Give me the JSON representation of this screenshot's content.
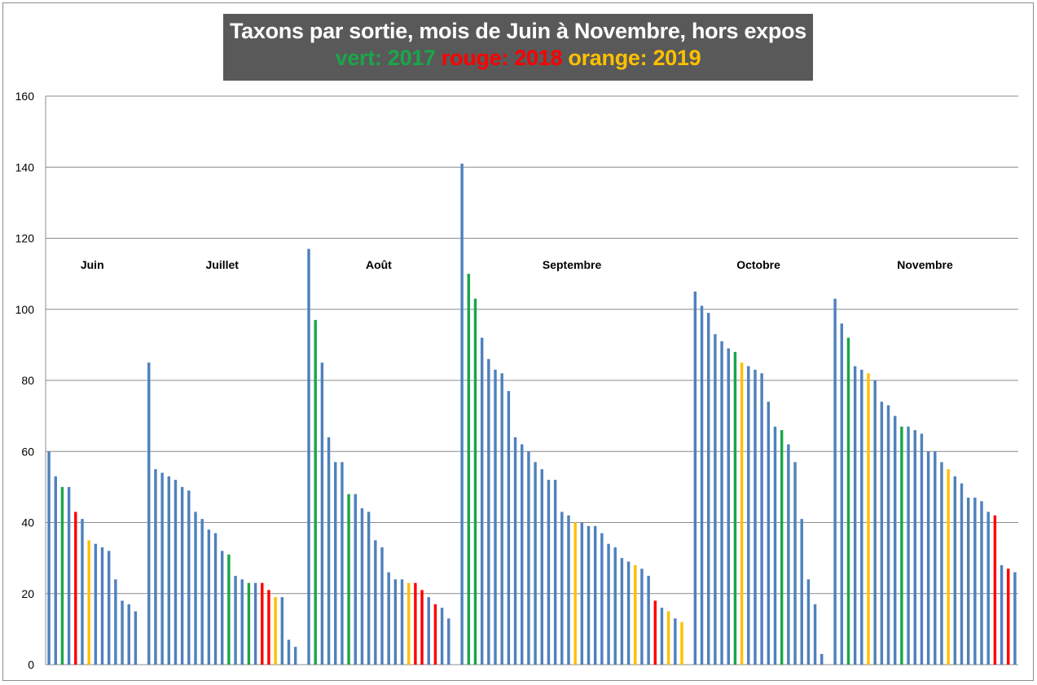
{
  "chart_data": {
    "type": "bar",
    "title_line1": "Taxons par sortie, mois de Juin à Novembre, hors expos",
    "title_line2": [
      {
        "text": "vert: 2017",
        "color": "#1aa64a"
      },
      {
        "text": "rouge: 2018",
        "color": "#ff0000"
      },
      {
        "text": "orange: 2019",
        "color": "#ffc000"
      }
    ],
    "colors": {
      "blue": "#4f81bd",
      "green": "#1aa64a",
      "red": "#ff0000",
      "orange": "#ffc000"
    },
    "ylim": [
      0,
      160
    ],
    "yticks": [
      0,
      20,
      40,
      60,
      80,
      100,
      120,
      140,
      160
    ],
    "grid": true,
    "months": [
      {
        "name": "Juin",
        "values": [
          60,
          53,
          50,
          50,
          43,
          41,
          35,
          34,
          33,
          32,
          24,
          18,
          17,
          15
        ],
        "colors": [
          "blue",
          "blue",
          "green",
          "blue",
          "red",
          "blue",
          "orange",
          "blue",
          "blue",
          "blue",
          "blue",
          "blue",
          "blue",
          "blue"
        ]
      },
      {
        "name": "Juillet",
        "values": [
          85,
          55,
          54,
          53,
          52,
          50,
          49,
          43,
          41,
          38,
          37,
          32,
          31,
          25,
          24,
          23,
          23,
          23,
          21,
          19,
          19,
          7,
          5
        ],
        "colors": [
          "blue",
          "blue",
          "blue",
          "blue",
          "blue",
          "blue",
          "blue",
          "blue",
          "blue",
          "blue",
          "blue",
          "blue",
          "green",
          "blue",
          "blue",
          "green",
          "blue",
          "red",
          "red",
          "orange",
          "blue",
          "blue",
          "blue"
        ]
      },
      {
        "name": "Août",
        "values": [
          117,
          97,
          85,
          64,
          57,
          57,
          48,
          48,
          44,
          43,
          35,
          33,
          26,
          24,
          24,
          23,
          23,
          21,
          19,
          17,
          16,
          13
        ],
        "colors": [
          "blue",
          "green",
          "blue",
          "blue",
          "blue",
          "blue",
          "green",
          "blue",
          "blue",
          "blue",
          "blue",
          "blue",
          "blue",
          "blue",
          "blue",
          "orange",
          "red",
          "red",
          "blue",
          "red",
          "blue",
          "blue"
        ]
      },
      {
        "name": "Septembre",
        "values": [
          141,
          110,
          103,
          92,
          86,
          83,
          82,
          77,
          64,
          62,
          60,
          57,
          55,
          52,
          52,
          43,
          42,
          40,
          40,
          39,
          39,
          37,
          34,
          33,
          30,
          29,
          28,
          27,
          25,
          18,
          16,
          15,
          13,
          12
        ],
        "colors": [
          "blue",
          "green",
          "green",
          "blue",
          "blue",
          "blue",
          "blue",
          "blue",
          "blue",
          "blue",
          "blue",
          "blue",
          "blue",
          "blue",
          "blue",
          "blue",
          "blue",
          "orange",
          "blue",
          "blue",
          "blue",
          "blue",
          "blue",
          "blue",
          "blue",
          "blue",
          "orange",
          "blue",
          "blue",
          "red",
          "blue",
          "orange",
          "blue",
          "orange"
        ]
      },
      {
        "name": "Octobre",
        "values": [
          105,
          101,
          99,
          93,
          91,
          89,
          88,
          85,
          84,
          83,
          82,
          74,
          67,
          66,
          62,
          57,
          41,
          24,
          17,
          3
        ],
        "colors": [
          "blue",
          "blue",
          "blue",
          "blue",
          "blue",
          "blue",
          "green",
          "orange",
          "blue",
          "blue",
          "blue",
          "blue",
          "blue",
          "green",
          "blue",
          "blue",
          "blue",
          "blue",
          "blue",
          "blue"
        ]
      },
      {
        "name": "Novembre",
        "values": [
          103,
          96,
          92,
          84,
          83,
          82,
          80,
          74,
          73,
          70,
          67,
          67,
          66,
          65,
          60,
          60,
          57,
          55,
          53,
          51,
          47,
          47,
          46,
          43,
          42,
          28,
          27,
          26
        ],
        "colors": [
          "blue",
          "blue",
          "green",
          "blue",
          "blue",
          "orange",
          "blue",
          "blue",
          "blue",
          "blue",
          "green",
          "blue",
          "blue",
          "blue",
          "blue",
          "blue",
          "blue",
          "orange",
          "blue",
          "blue",
          "blue",
          "blue",
          "blue",
          "blue",
          "red",
          "blue",
          "red",
          "blue"
        ]
      }
    ]
  }
}
